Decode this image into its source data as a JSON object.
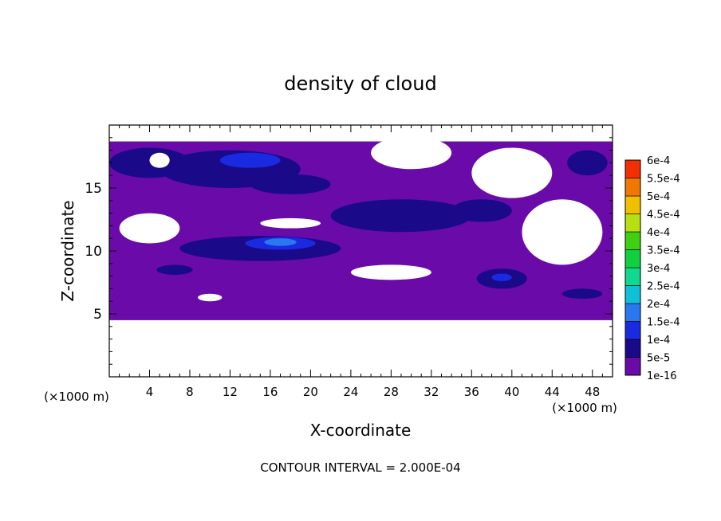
{
  "chart_data": {
    "type": "heatmap",
    "title": "density of cloud",
    "xlabel": "X-coordinate",
    "ylabel": "Z-coordinate",
    "x_unit_left": "(×1000 m)",
    "x_unit_right": "(×1000 m)",
    "footer": "CONTOUR INTERVAL = 2.000E-04",
    "xlim": [
      0,
      50
    ],
    "ylim": [
      0,
      20
    ],
    "x_ticks": [
      "4",
      "8",
      "12",
      "16",
      "20",
      "24",
      "28",
      "32",
      "36",
      "40",
      "44",
      "48"
    ],
    "y_ticks": [
      "5",
      "10",
      "15"
    ],
    "x_tick_values": [
      4,
      8,
      12,
      16,
      20,
      24,
      28,
      32,
      36,
      40,
      44,
      48
    ],
    "y_tick_values": [
      5,
      10,
      15
    ],
    "colorbar": {
      "levels": [
        "1e-16",
        "5e-5",
        "1e-4",
        "1.5e-4",
        "2e-4",
        "2.5e-4",
        "3e-4",
        "3.5e-4",
        "4e-4",
        "4.5e-4",
        "5e-4",
        "5.5e-4",
        "6e-4"
      ],
      "colors": [
        "#6a0aa8",
        "#1a0a8a",
        "#1a2ae0",
        "#2a78f0",
        "#10c0d8",
        "#10d890",
        "#10d040",
        "#40d010",
        "#b8e010",
        "#f0c000",
        "#f07800",
        "#f03000",
        "#f08080"
      ]
    },
    "cloud_layer_z_range": [
      4.5,
      18.7
    ],
    "regions": [
      {
        "level": 1,
        "x": 4,
        "z": 17,
        "rx": 4,
        "rz": 1.2
      },
      {
        "level": 1,
        "x": 12,
        "z": 16.5,
        "rx": 7,
        "rz": 1.5
      },
      {
        "level": 2,
        "x": 14,
        "z": 17.2,
        "rx": 3,
        "rz": 0.6
      },
      {
        "level": 1,
        "x": 18,
        "z": 15.3,
        "rx": 4,
        "rz": 0.8
      },
      {
        "level": 1,
        "x": 29,
        "z": 12.8,
        "rx": 7,
        "rz": 1.3
      },
      {
        "level": 1,
        "x": 37,
        "z": 13.2,
        "rx": 3,
        "rz": 0.9
      },
      {
        "level": 1,
        "x": 15,
        "z": 10.2,
        "rx": 8,
        "rz": 1.0
      },
      {
        "level": 2,
        "x": 17,
        "z": 10.6,
        "rx": 3.5,
        "rz": 0.5
      },
      {
        "level": 3,
        "x": 17,
        "z": 10.7,
        "rx": 1.6,
        "rz": 0.3
      },
      {
        "level": 1,
        "x": 6.5,
        "z": 8.5,
        "rx": 1.8,
        "rz": 0.4
      },
      {
        "level": 1,
        "x": 39,
        "z": 7.8,
        "rx": 2.5,
        "rz": 0.8
      },
      {
        "level": 2,
        "x": 39,
        "z": 7.9,
        "rx": 1.0,
        "rz": 0.3
      },
      {
        "level": 1,
        "x": 47,
        "z": 6.6,
        "rx": 2,
        "rz": 0.4
      },
      {
        "level": 1,
        "x": 47.5,
        "z": 17,
        "rx": 2,
        "rz": 1.0
      }
    ],
    "gaps": [
      {
        "x": 30,
        "z": 17.8,
        "rx": 4,
        "rz": 1.3
      },
      {
        "x": 40,
        "z": 16.2,
        "rx": 4,
        "rz": 2.0
      },
      {
        "x": 45,
        "z": 11.5,
        "rx": 4,
        "rz": 2.6
      },
      {
        "x": 4,
        "z": 11.8,
        "rx": 3,
        "rz": 1.2
      },
      {
        "x": 28,
        "z": 8.3,
        "rx": 4,
        "rz": 0.6
      },
      {
        "x": 18,
        "z": 12.2,
        "rx": 3,
        "rz": 0.4
      },
      {
        "x": 5,
        "z": 17.2,
        "rx": 1.0,
        "rz": 0.6
      },
      {
        "x": 10,
        "z": 6.3,
        "rx": 1.2,
        "rz": 0.3
      }
    ]
  }
}
